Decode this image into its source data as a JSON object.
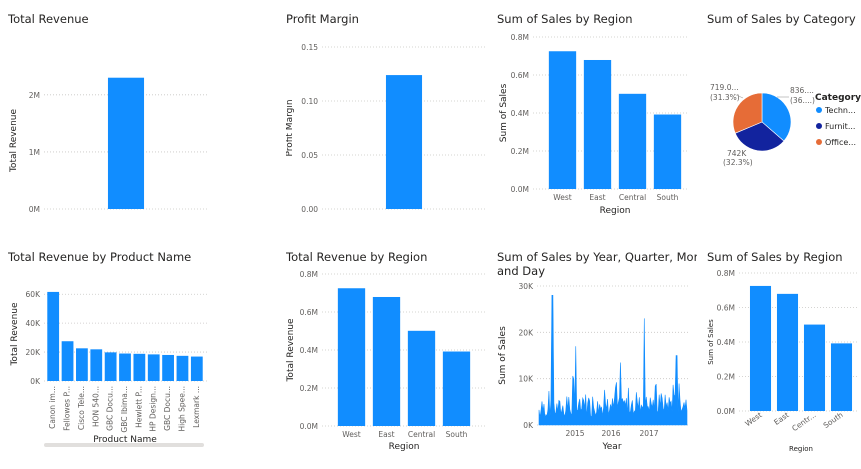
{
  "colors": {
    "bar": "#118dff",
    "tech": "#118dff",
    "furniture": "#12239e",
    "office": "#e66c37"
  },
  "visuals": [
    {
      "key": "total_revenue",
      "title": "Total Revenue",
      "chart_data": {
        "type": "bar",
        "categories": [
          ""
        ],
        "values": [
          2300000
        ],
        "xlabel": "",
        "ylabel": "Total Revenue",
        "ylim": [
          0,
          2400000
        ],
        "ticks": [
          0,
          1000000,
          2000000
        ],
        "tick_labels": [
          "0M",
          "1M",
          "2M"
        ],
        "grid": true
      }
    },
    {
      "key": "profit_margin",
      "title": "Profit Margin",
      "chart_data": {
        "type": "bar",
        "categories": [
          ""
        ],
        "values": [
          0.124
        ],
        "xlabel": "",
        "ylabel": "Profit Margin",
        "ylim": [
          0,
          0.15
        ],
        "ticks": [
          0,
          0.05,
          0.1,
          0.15
        ],
        "tick_labels": [
          "0.00",
          "0.05",
          "0.10",
          "0.15"
        ],
        "grid": true
      }
    },
    {
      "key": "sales_by_region_1",
      "title": "Sum of Sales by Region",
      "chart_data": {
        "type": "bar",
        "categories": [
          "West",
          "East",
          "Central",
          "South"
        ],
        "values": [
          725000,
          679000,
          501000,
          392000
        ],
        "xlabel": "Region",
        "ylabel": "Sum of Sales",
        "ylim": [
          0,
          800000
        ],
        "ticks": [
          0,
          200000,
          400000,
          600000,
          800000
        ],
        "tick_labels": [
          "0.0M",
          "0.2M",
          "0.4M",
          "0.6M",
          "0.8M"
        ],
        "grid": true
      }
    },
    {
      "key": "sales_by_category",
      "title": "Sum of Sales by Category",
      "chart_data": {
        "type": "pie",
        "legend_title": "Category",
        "legend_position": "right",
        "categories": [
          "Techn...",
          "Furnit...",
          "Office..."
        ],
        "values": [
          836000,
          742000,
          719000
        ],
        "labels": [
          {
            "line1": "836....",
            "line2": "(36....)"
          },
          {
            "line1": "742K",
            "line2": "(32.3%)"
          },
          {
            "line1": "719.0...",
            "line2": "(31.3%)"
          }
        ]
      }
    },
    {
      "key": "revenue_by_product",
      "title": "Total Revenue by Product Name",
      "chart_data": {
        "type": "bar",
        "categories": [
          "Canon im...",
          "Fellowes P...",
          "Cisco Tele...",
          "HON 540...",
          "GBC Docu...",
          "GBC Ibimа...",
          "Hewlett P...",
          "HP Design...",
          "GBC Docu...",
          "High Spee...",
          "Lexmark ..."
        ],
        "values": [
          61600,
          27500,
          22600,
          21900,
          19800,
          19000,
          18800,
          18400,
          18000,
          17400,
          16900
        ],
        "xlabel": "Product Name",
        "ylabel": "Total Revenue",
        "ylim": [
          0,
          65000
        ],
        "ticks": [
          0,
          20000,
          40000,
          60000
        ],
        "tick_labels": [
          "0K",
          "20K",
          "40K",
          "60K"
        ],
        "grid": true
      }
    },
    {
      "key": "revenue_by_region",
      "title": "Total Revenue by Region",
      "chart_data": {
        "type": "bar",
        "categories": [
          "West",
          "East",
          "Central",
          "South"
        ],
        "values": [
          725000,
          679000,
          501000,
          392000
        ],
        "xlabel": "Region",
        "ylabel": "Total Revenue",
        "ylim": [
          0,
          800000
        ],
        "ticks": [
          0,
          200000,
          400000,
          600000,
          800000
        ],
        "tick_labels": [
          "0.0M",
          "0.2M",
          "0.4M",
          "0.6M",
          "0.8M"
        ],
        "grid": true
      }
    },
    {
      "key": "sales_over_time",
      "title": "Sum of Sales by Year, Quarter, Month and Day",
      "title_line1": "Sum of Sales by Year, Quarter, Month",
      "title_line2": "and Day",
      "chart_data": {
        "type": "area",
        "xlabel": "Year",
        "ylabel": "Sum of Sales",
        "x_tick_labels": [
          "2015",
          "2016",
          "2017"
        ],
        "ylim": [
          0,
          30000
        ],
        "ticks": [
          0,
          10000,
          20000,
          30000
        ],
        "tick_labels": [
          "0K",
          "10K",
          "20K",
          "30K"
        ],
        "peaks": [
          {
            "t": 0.09,
            "v": 28000
          },
          {
            "t": 0.71,
            "v": 23000
          },
          {
            "t": 0.25,
            "v": 17000
          },
          {
            "t": 0.93,
            "v": 15000
          },
          {
            "t": 0.55,
            "v": 13500
          }
        ],
        "grid": true
      }
    },
    {
      "key": "sales_by_region_2",
      "title": "Sum of Sales by Region",
      "chart_data": {
        "type": "bar",
        "categories": [
          "West",
          "East",
          "Centr...",
          "South"
        ],
        "values": [
          725000,
          679000,
          501000,
          392000
        ],
        "xlabel": "Region",
        "ylabel": "Sum of Sales",
        "ylim": [
          0,
          800000
        ],
        "ticks": [
          0,
          200000,
          400000,
          600000,
          800000
        ],
        "tick_labels": [
          "0.0M",
          "0.2M",
          "0.4M",
          "0.6M",
          "0.8M"
        ],
        "grid": true
      }
    }
  ]
}
